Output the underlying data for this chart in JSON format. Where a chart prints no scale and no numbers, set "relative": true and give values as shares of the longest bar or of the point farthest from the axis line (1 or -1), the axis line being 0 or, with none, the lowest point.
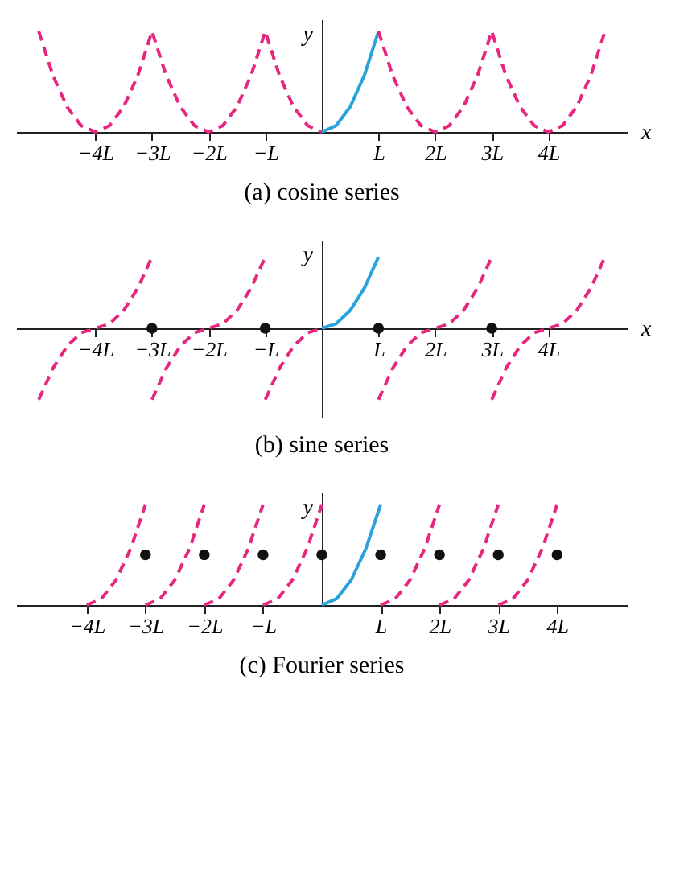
{
  "chart_data": [
    {
      "type": "line",
      "title": "(a) cosine series",
      "xlabel": "x",
      "ylabel": "y",
      "relative": true,
      "xlim": [
        -5.4,
        5.4
      ],
      "xticks": [
        {
          "value": -4,
          "label": "−4L"
        },
        {
          "value": -3,
          "label": "−3L"
        },
        {
          "value": -2,
          "label": "−2L"
        },
        {
          "value": -1,
          "label": "−L"
        },
        {
          "value": 1,
          "label": "L"
        },
        {
          "value": 2,
          "label": "2L"
        },
        {
          "value": 3,
          "label": "3L"
        },
        {
          "value": 4,
          "label": "4L"
        }
      ],
      "series": [
        {
          "type": "line",
          "color": "#e6267f",
          "line_style": "dashed",
          "x": [
            -5,
            -4.75,
            -4.5,
            -4.25,
            -4,
            -3.75,
            -3.5,
            -3.25,
            -3,
            -2.75,
            -2.5,
            -2.25,
            -2,
            -1.75,
            -1.5,
            -1.25,
            -1,
            -0.75,
            -0.5,
            -0.25,
            0
          ],
          "values": [
            1,
            0.5625,
            0.25,
            0.0625,
            0,
            0.0625,
            0.25,
            0.5625,
            1,
            0.5625,
            0.25,
            0.0625,
            0,
            0.0625,
            0.25,
            0.5625,
            1,
            0.5625,
            0.25,
            0.0625,
            0
          ]
        },
        {
          "color": "#29a3dc",
          "line_style": "solid",
          "x": [
            0,
            0.25,
            0.5,
            0.75,
            1
          ],
          "values": [
            0,
            0.0625,
            0.25,
            0.5625,
            1
          ]
        },
        {
          "color": "#e6267f",
          "line_style": "dashed",
          "x": [
            1,
            1.25,
            1.5,
            1.75,
            2,
            2.25,
            2.5,
            2.75,
            3,
            3.25,
            3.5,
            3.75,
            4,
            4.25,
            4.5,
            4.75,
            5
          ],
          "values": [
            1,
            0.5625,
            0.25,
            0.0625,
            0,
            0.0625,
            0.25,
            0.5625,
            1,
            0.5625,
            0.25,
            0.0625,
            0,
            0.0625,
            0.25,
            0.5625,
            1
          ]
        }
      ]
    },
    {
      "type": "line",
      "title": "(b) sine series",
      "xlabel": "x",
      "ylabel": "y",
      "relative": true,
      "xlim": [
        -5.4,
        5.4
      ],
      "xticks": [
        {
          "value": -4,
          "label": "−4L"
        },
        {
          "value": -3,
          "label": "−3L"
        },
        {
          "value": -2,
          "label": "−2L"
        },
        {
          "value": -1,
          "label": "−L"
        },
        {
          "value": 1,
          "label": "L"
        },
        {
          "value": 2,
          "label": "2L"
        },
        {
          "value": 3,
          "label": "3L"
        },
        {
          "value": 4,
          "label": "4L"
        }
      ],
      "series": [
        {
          "type": "line",
          "color": "#e6267f",
          "line_style": "dashed",
          "x": [
            -5,
            -4.75,
            -4.5,
            -4.25,
            -4,
            -3.75,
            -3.5,
            -3.25,
            -3
          ],
          "values": [
            -1,
            -0.5625,
            -0.25,
            -0.0625,
            0,
            0.0625,
            0.25,
            0.5625,
            1
          ]
        },
        {
          "type": "line",
          "color": "#e6267f",
          "line_style": "dashed",
          "x": [
            -3,
            -2.75,
            -2.5,
            -2.25,
            -2,
            -1.75,
            -1.5,
            -1.25,
            -1
          ],
          "values": [
            -1,
            -0.5625,
            -0.25,
            -0.0625,
            0,
            0.0625,
            0.25,
            0.5625,
            1
          ]
        },
        {
          "type": "line",
          "color": "#e6267f",
          "line_style": "dashed",
          "x": [
            -1,
            -0.75,
            -0.5,
            -0.25,
            0
          ],
          "values": [
            -1,
            -0.5625,
            -0.25,
            -0.0625,
            0
          ]
        },
        {
          "type": "line",
          "color": "#29a3dc",
          "line_style": "solid",
          "x": [
            0,
            0.25,
            0.5,
            0.75,
            1
          ],
          "values": [
            0,
            0.0625,
            0.25,
            0.5625,
            1
          ]
        },
        {
          "type": "line",
          "color": "#e6267f",
          "line_style": "dashed",
          "x": [
            1,
            1.25,
            1.5,
            1.75,
            2,
            2.25,
            2.5,
            2.75,
            3
          ],
          "values": [
            -1,
            -0.5625,
            -0.25,
            -0.0625,
            0,
            0.0625,
            0.25,
            0.5625,
            1
          ]
        },
        {
          "type": "line",
          "color": "#e6267f",
          "line_style": "dashed",
          "x": [
            3,
            3.25,
            3.5,
            3.75,
            4,
            4.25,
            4.5,
            4.75,
            5
          ],
          "values": [
            -1,
            -0.5625,
            -0.25,
            -0.0625,
            0,
            0.0625,
            0.25,
            0.5625,
            1
          ]
        },
        {
          "type": "scatter",
          "color": "#111111",
          "marker": "circle",
          "x": [
            -3,
            -1,
            1,
            3
          ],
          "values": [
            0,
            0,
            0,
            0
          ]
        }
      ]
    },
    {
      "type": "line",
      "title": "(c) Fourier series",
      "ylabel": "y",
      "relative": true,
      "xlim": [
        -5.2,
        5.2
      ],
      "xticks": [
        {
          "value": -4,
          "label": "−4L"
        },
        {
          "value": -3,
          "label": "−3L"
        },
        {
          "value": -2,
          "label": "−2L"
        },
        {
          "value": -1,
          "label": "−L"
        },
        {
          "value": 1,
          "label": "L"
        },
        {
          "value": 2,
          "label": "2L"
        },
        {
          "value": 3,
          "label": "3L"
        },
        {
          "value": 4,
          "label": "4L"
        }
      ],
      "series": [
        {
          "type": "line",
          "color": "#e6267f",
          "line_style": "dashed",
          "x": [
            -4,
            -3.75,
            -3.5,
            -3.25,
            -3
          ],
          "values": [
            0,
            0.0625,
            0.25,
            0.5625,
            1
          ]
        },
        {
          "type": "line",
          "color": "#e6267f",
          "line_style": "dashed",
          "x": [
            -3,
            -2.75,
            -2.5,
            -2.25,
            -2
          ],
          "values": [
            0,
            0.0625,
            0.25,
            0.5625,
            1
          ]
        },
        {
          "type": "line",
          "color": "#e6267f",
          "line_style": "dashed",
          "x": [
            -2,
            -1.75,
            -1.5,
            -1.25,
            -1
          ],
          "values": [
            0,
            0.0625,
            0.25,
            0.5625,
            1
          ]
        },
        {
          "type": "line",
          "color": "#e6267f",
          "line_style": "dashed",
          "x": [
            -1,
            -0.75,
            -0.5,
            -0.25,
            0
          ],
          "values": [
            0,
            0.0625,
            0.25,
            0.5625,
            1
          ]
        },
        {
          "type": "line",
          "color": "#29a3dc",
          "line_style": "solid",
          "x": [
            0,
            0.25,
            0.5,
            0.75,
            1
          ],
          "values": [
            0,
            0.0625,
            0.25,
            0.5625,
            1
          ]
        },
        {
          "type": "line",
          "color": "#e6267f",
          "line_style": "dashed",
          "x": [
            1,
            1.25,
            1.5,
            1.75,
            2
          ],
          "values": [
            0,
            0.0625,
            0.25,
            0.5625,
            1
          ]
        },
        {
          "type": "line",
          "color": "#e6267f",
          "line_style": "dashed",
          "x": [
            2,
            2.25,
            2.5,
            2.75,
            3
          ],
          "values": [
            0,
            0.0625,
            0.25,
            0.5625,
            1
          ]
        },
        {
          "type": "line",
          "color": "#e6267f",
          "line_style": "dashed",
          "x": [
            3,
            3.25,
            3.5,
            3.75,
            4
          ],
          "values": [
            0,
            0.0625,
            0.25,
            0.5625,
            1
          ]
        },
        {
          "type": "scatter",
          "color": "#111111",
          "marker": "circle",
          "x": [
            -3,
            -2,
            -1,
            0,
            1,
            2,
            3,
            4
          ],
          "values": [
            0.5,
            0.5,
            0.5,
            0.5,
            0.5,
            0.5,
            0.5,
            0.5
          ]
        }
      ]
    }
  ]
}
